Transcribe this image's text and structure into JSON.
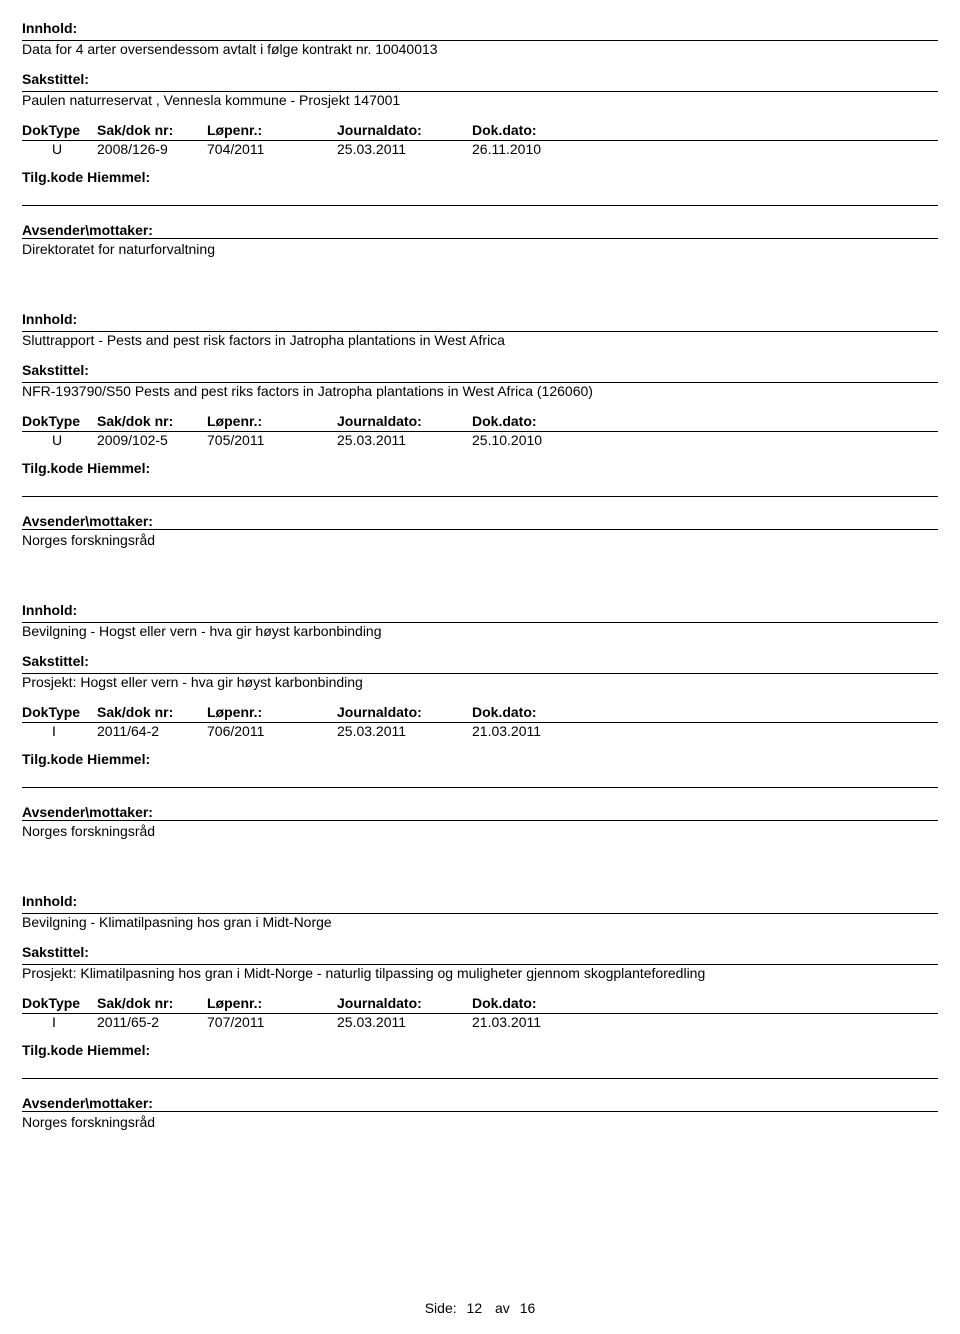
{
  "labels": {
    "innhold": "Innhold:",
    "sakstittel": "Sakstittel:",
    "doktype": "DokType",
    "sakdok": "Sak/dok nr:",
    "lopenr": "Løpenr.:",
    "journaldato": "Journaldato:",
    "dokdato": "Dok.dato:",
    "tilgkode": "Tilg.kode",
    "hiemmel": "Hiemmel:",
    "avsender": "Avsender\\mottaker:",
    "side": "Side:",
    "av": "av"
  },
  "records": [
    {
      "innhold": "Data for 4 arter oversendessom avtalt i følge kontrakt nr. 10040013",
      "sakstittel": "Paulen naturreservat , Vennesla kommune - Prosjekt 147001",
      "doktype": "U",
      "sakdok": "2008/126-9",
      "lopenr": "704/2011",
      "journaldato": "25.03.2011",
      "dokdato": "26.11.2010",
      "avsender": "Direktoratet for naturforvaltning"
    },
    {
      "innhold": "Sluttrapport - Pests and pest risk factors in Jatropha plantations in West Africa",
      "sakstittel": "NFR-193790/S50 Pests and pest riks factors in Jatropha plantations in West Africa (126060)",
      "doktype": "U",
      "sakdok": "2009/102-5",
      "lopenr": "705/2011",
      "journaldato": "25.03.2011",
      "dokdato": "25.10.2010",
      "avsender": "Norges forskningsråd"
    },
    {
      "innhold": "Bevilgning - Hogst eller vern - hva gir høyst karbonbinding",
      "sakstittel": "Prosjekt:  Hogst eller vern - hva gir høyst karbonbinding",
      "doktype": "I",
      "sakdok": "2011/64-2",
      "lopenr": "706/2011",
      "journaldato": "25.03.2011",
      "dokdato": "21.03.2011",
      "avsender": "Norges forskningsråd"
    },
    {
      "innhold": "Bevilgning - Klimatilpasning hos gran i Midt-Norge",
      "sakstittel": "Prosjekt: Klimatilpasning hos gran i Midt-Norge - naturlig tilpassing og muligheter gjennom skogplanteforedling",
      "doktype": "I",
      "sakdok": "2011/65-2",
      "lopenr": "707/2011",
      "journaldato": "25.03.2011",
      "dokdato": "21.03.2011",
      "avsender": "Norges forskningsråd"
    }
  ],
  "footer": {
    "page": "12",
    "total": "16"
  }
}
